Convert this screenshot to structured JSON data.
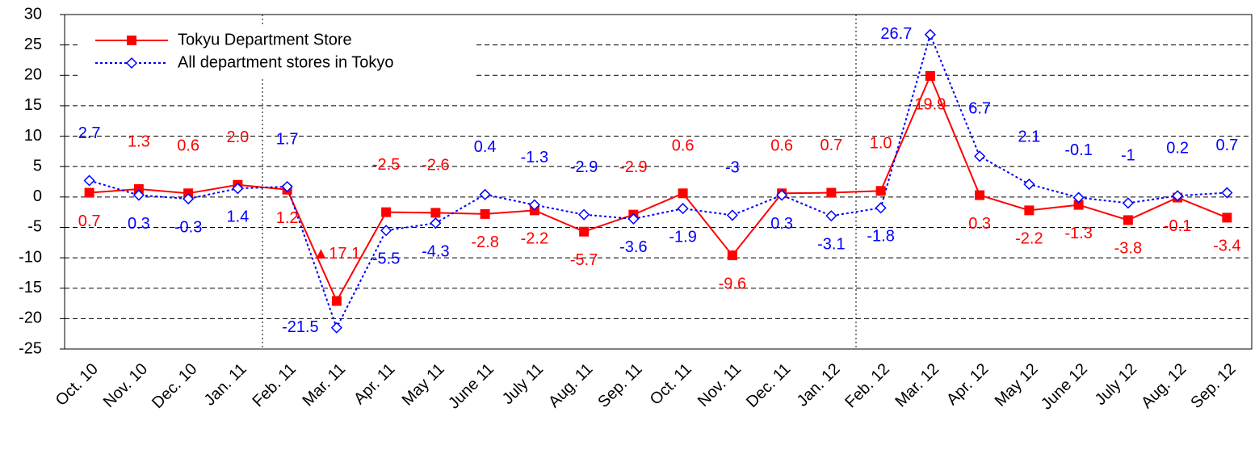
{
  "chart_data": {
    "type": "line",
    "categories": [
      "Oct. 10",
      "Nov. 10",
      "Dec. 10",
      "Jan. 11",
      "Feb. 11",
      "Mar. 11",
      "Apr. 11",
      "May 11",
      "June 11",
      "July 11",
      "Aug. 11",
      "Sep. 11",
      "Oct. 11",
      "Nov. 11",
      "Dec. 11",
      "Jan. 12",
      "Feb. 12",
      "Mar. 12",
      "Apr. 12",
      "May 12",
      "June 12",
      "July 12",
      "Aug. 12",
      "Sep. 12"
    ],
    "series": [
      {
        "name": "Tokyu Department Store",
        "color": "#ff0000",
        "values": [
          0.7,
          1.3,
          0.6,
          2.0,
          1.2,
          -17.1,
          -2.5,
          -2.6,
          -2.8,
          -2.2,
          -5.7,
          -2.9,
          0.6,
          -9.6,
          0.6,
          0.7,
          1.0,
          19.9,
          0.3,
          -2.2,
          -1.3,
          -3.8,
          -0.1,
          -3.4
        ],
        "value_labels": [
          "0.7",
          "1.3",
          "0.6",
          "2.0",
          "1.2",
          "▲17.1",
          "-2.5",
          "-2.6",
          "-2.8",
          "-2.2",
          "-5.7",
          "-2.9",
          "0.6",
          "-9.6",
          "0.6",
          "0.7",
          "1.0",
          "19.9",
          "0.3",
          "-2.2",
          "-1.3",
          "-3.8",
          "-0.1",
          "-3.4"
        ]
      },
      {
        "name": "All department stores in Tokyo",
        "color": "#0000ff",
        "values": [
          2.7,
          0.3,
          -0.3,
          1.4,
          1.7,
          -21.5,
          -5.5,
          -4.3,
          0.4,
          -1.3,
          -2.9,
          -3.6,
          -1.9,
          -3.0,
          0.3,
          -3.1,
          -1.8,
          26.7,
          6.7,
          2.1,
          -0.1,
          -1.0,
          0.2,
          0.7
        ]
      }
    ],
    "ylim": [
      -25,
      30
    ],
    "yticks": [
      -25,
      -20,
      -15,
      -10,
      -5,
      0,
      5,
      10,
      15,
      20,
      25,
      30
    ],
    "grid": true
  }
}
